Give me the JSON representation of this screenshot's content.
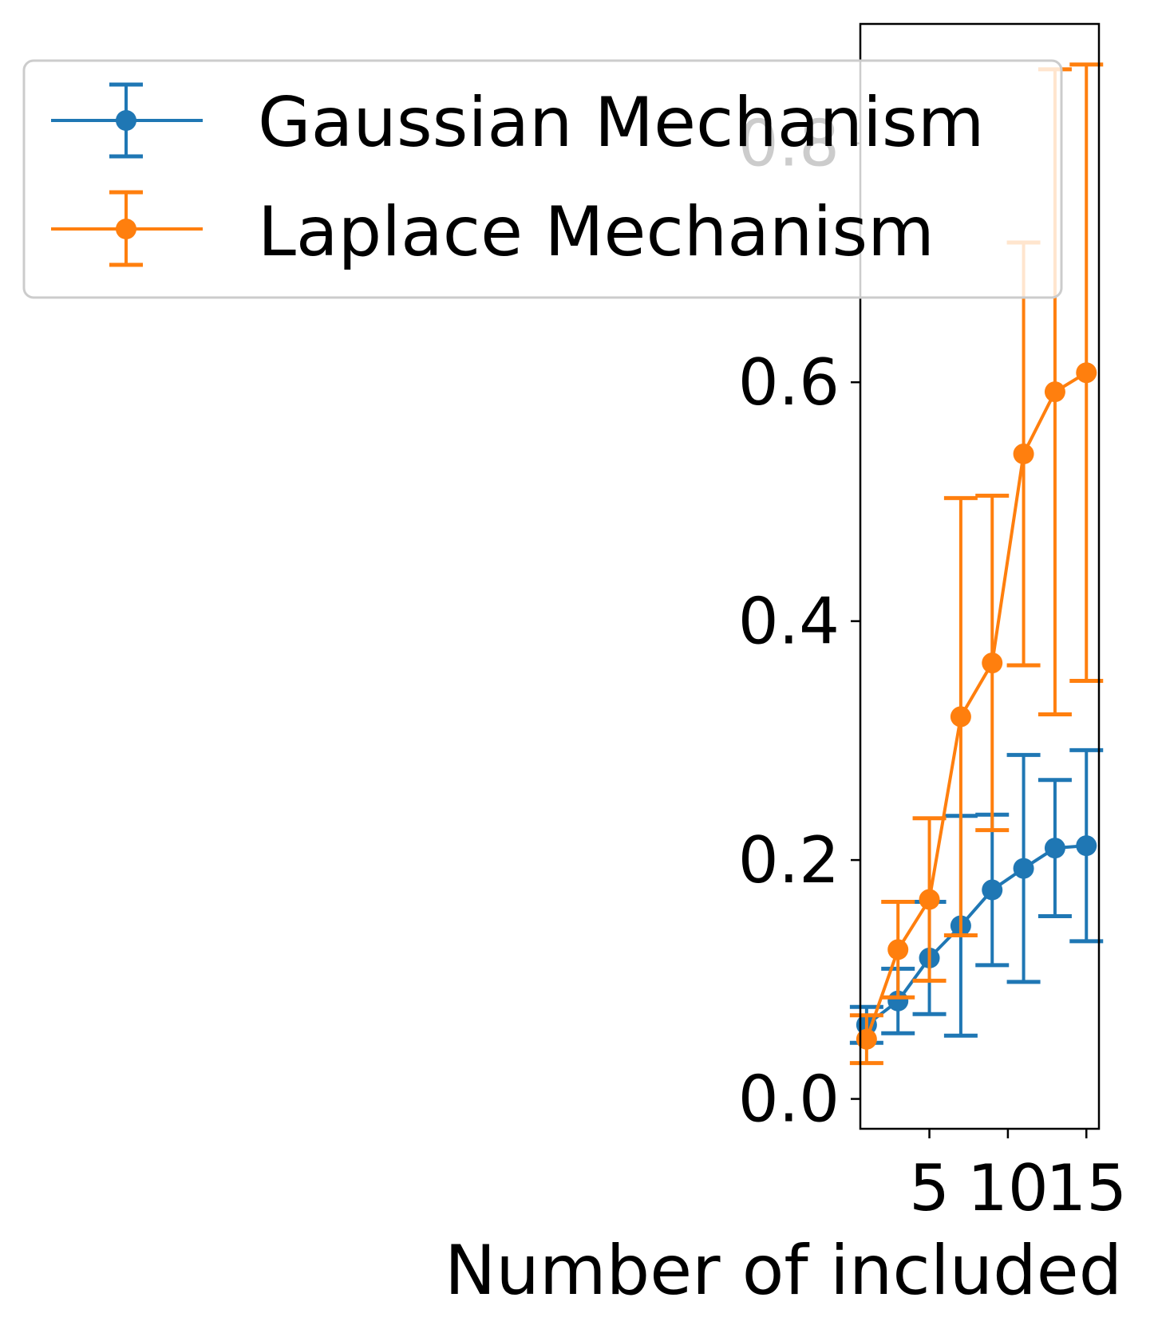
{
  "chart_data": {
    "type": "line",
    "title": "",
    "xlabel": "Number of included",
    "ylabel": "",
    "xlim": [
      0.6,
      15.8
    ],
    "ylim": [
      -0.025,
      0.9
    ],
    "xticks": [
      5,
      10,
      15
    ],
    "yticks": [
      0.0,
      0.2,
      0.4,
      0.6,
      0.8
    ],
    "ytick_labels": [
      "0.0",
      "0.2",
      "0.4",
      "0.6",
      "0.8"
    ],
    "xtick_labels": [
      "5",
      "10",
      "15"
    ],
    "grid": false,
    "legend_position": "top-left",
    "x": [
      1,
      3,
      5,
      7,
      9,
      11,
      13,
      15
    ],
    "series": [
      {
        "name": "Gaussian Mechanism",
        "color": "#1f77b4",
        "values": [
          0.062,
          0.082,
          0.118,
          0.145,
          0.175,
          0.193,
          0.21,
          0.212
        ],
        "errors": [
          0.015,
          0.027,
          0.047,
          0.092,
          0.063,
          0.095,
          0.057,
          0.08
        ]
      },
      {
        "name": "Laplace Mechanism",
        "color": "#ff7f0e",
        "values": [
          0.05,
          0.125,
          0.167,
          0.32,
          0.365,
          0.54,
          0.592,
          0.608
        ],
        "errors": [
          0.02,
          0.04,
          0.068,
          0.183,
          0.14,
          0.177,
          0.27,
          0.258
        ]
      }
    ]
  }
}
